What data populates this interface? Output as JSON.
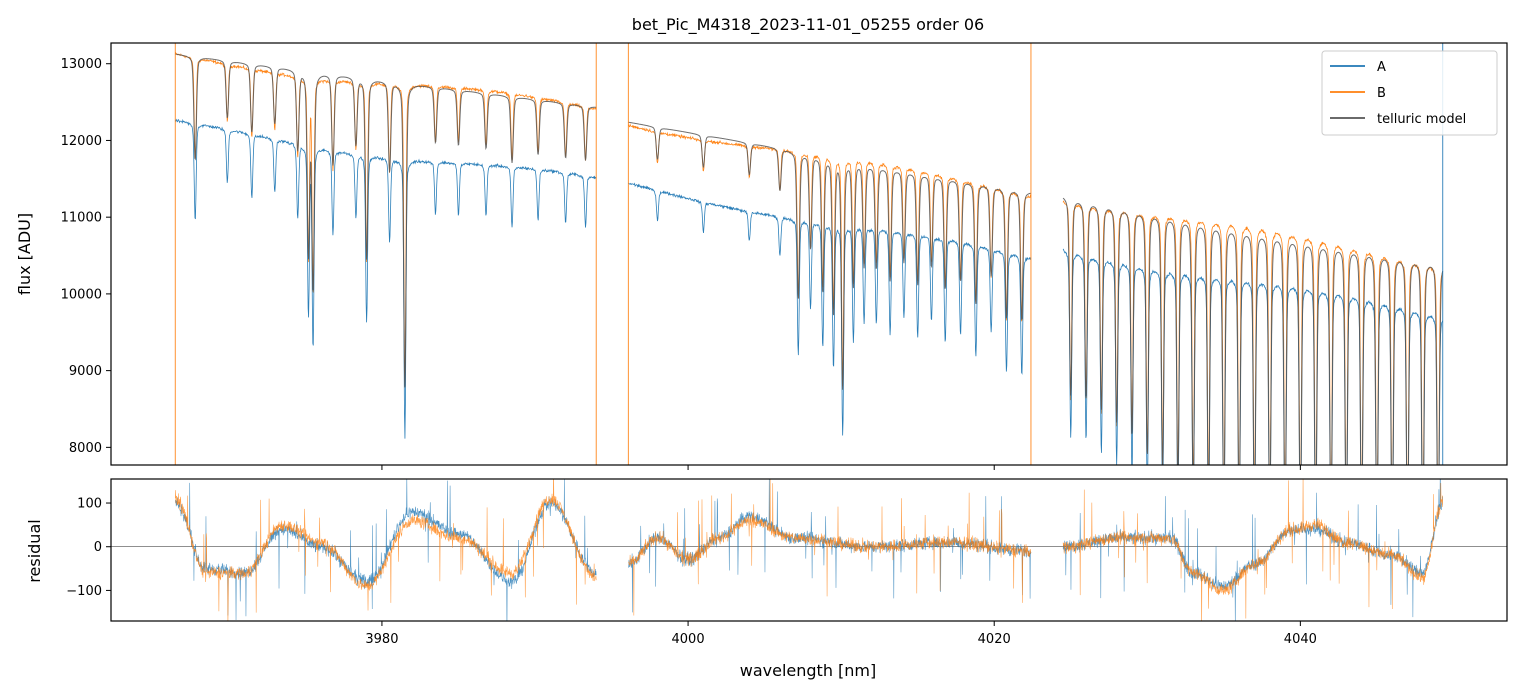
{
  "chart_data": [
    {
      "type": "line",
      "panel": "top",
      "title": "bet_Pic_M4318_2023-11-01_05255  order 06",
      "ylabel": "flux [ADU]",
      "xlim": [
        3962.3,
        4053.5
      ],
      "ylim": [
        7770,
        13270
      ],
      "yticks": [
        8000,
        9000,
        10000,
        11000,
        12000,
        13000
      ],
      "yticklabels": [
        "8000",
        "9000",
        "10000",
        "11000",
        "12000",
        "13000"
      ],
      "xticks": [
        3980,
        4000,
        4020,
        4040
      ],
      "grid": false,
      "legend_position": "top-right",
      "segments": [
        {
          "x": [
            3966.5,
            3994.0
          ],
          "A": [
            12200,
            11470
          ],
          "B": [
            13100,
            12420
          ],
          "model": [
            13130,
            12440
          ]
        },
        {
          "x": [
            3996.1,
            4022.4
          ],
          "A": [
            11420,
            10470
          ],
          "B": [
            12230,
            11330
          ],
          "model": [
            12240,
            11340
          ]
        },
        {
          "x": [
            4024.5,
            4049.3
          ],
          "A": [
            10620,
            9750
          ],
          "B": [
            11290,
            10430
          ],
          "model": [
            11300,
            10440
          ]
        }
      ],
      "absorption_lines": [
        {
          "x": 3967.8,
          "depth": 0.09
        },
        {
          "x": 3969.9,
          "depth": 0.05
        },
        {
          "x": 3971.5,
          "depth": 0.06
        },
        {
          "x": 3973.0,
          "depth": 0.05
        },
        {
          "x": 3974.5,
          "depth": 0.07
        },
        {
          "x": 3975.2,
          "depth": 0.16
        },
        {
          "x": 3975.5,
          "depth": 0.19
        },
        {
          "x": 3976.8,
          "depth": 0.08
        },
        {
          "x": 3978.3,
          "depth": 0.06
        },
        {
          "x": 3979.0,
          "depth": 0.16
        },
        {
          "x": 3980.5,
          "depth": 0.08
        },
        {
          "x": 3981.5,
          "depth": 0.27
        },
        {
          "x": 3983.5,
          "depth": 0.05
        },
        {
          "x": 3985.0,
          "depth": 0.05
        },
        {
          "x": 3986.8,
          "depth": 0.05
        },
        {
          "x": 3988.5,
          "depth": 0.06
        },
        {
          "x": 3990.2,
          "depth": 0.05
        },
        {
          "x": 3992.0,
          "depth": 0.05
        },
        {
          "x": 3993.3,
          "depth": 0.05
        },
        {
          "x": 3998.0,
          "depth": 0.03
        },
        {
          "x": 4001.0,
          "depth": 0.03
        },
        {
          "x": 4004.0,
          "depth": 0.03
        },
        {
          "x": 4006.0,
          "depth": 0.04
        },
        {
          "x": 4007.2,
          "depth": 0.14
        },
        {
          "x": 4008.0,
          "depth": 0.09
        },
        {
          "x": 4008.8,
          "depth": 0.13
        },
        {
          "x": 4009.5,
          "depth": 0.15
        },
        {
          "x": 4010.1,
          "depth": 0.22
        },
        {
          "x": 4010.8,
          "depth": 0.12
        },
        {
          "x": 4011.5,
          "depth": 0.1
        },
        {
          "x": 4012.3,
          "depth": 0.1
        },
        {
          "x": 4013.2,
          "depth": 0.11
        },
        {
          "x": 4014.1,
          "depth": 0.09
        },
        {
          "x": 4015.0,
          "depth": 0.11
        },
        {
          "x": 4015.9,
          "depth": 0.09
        },
        {
          "x": 4016.8,
          "depth": 0.11
        },
        {
          "x": 4017.8,
          "depth": 0.1
        },
        {
          "x": 4018.8,
          "depth": 0.12
        },
        {
          "x": 4019.8,
          "depth": 0.09
        },
        {
          "x": 4020.8,
          "depth": 0.13
        },
        {
          "x": 4021.8,
          "depth": 0.13
        },
        {
          "x": 4025.0,
          "depth": 0.2
        },
        {
          "x": 4026.0,
          "depth": 0.2
        },
        {
          "x": 4027.0,
          "depth": 0.21
        },
        {
          "x": 4028.0,
          "depth": 0.22
        },
        {
          "x": 4029.0,
          "depth": 0.23
        },
        {
          "x": 4030.0,
          "depth": 0.25
        },
        {
          "x": 4031.0,
          "depth": 0.26
        },
        {
          "x": 4032.0,
          "depth": 0.27
        },
        {
          "x": 4033.0,
          "depth": 0.28
        },
        {
          "x": 4034.0,
          "depth": 0.29
        },
        {
          "x": 4035.0,
          "depth": 0.3
        },
        {
          "x": 4036.0,
          "depth": 0.3
        },
        {
          "x": 4037.0,
          "depth": 0.3
        },
        {
          "x": 4038.0,
          "depth": 0.3
        },
        {
          "x": 4039.0,
          "depth": 0.3
        },
        {
          "x": 4040.0,
          "depth": 0.3
        },
        {
          "x": 4041.0,
          "depth": 0.3
        },
        {
          "x": 4042.0,
          "depth": 0.3
        },
        {
          "x": 4043.0,
          "depth": 0.3
        },
        {
          "x": 4044.0,
          "depth": 0.3
        },
        {
          "x": 4045.0,
          "depth": 0.3
        },
        {
          "x": 4046.0,
          "depth": 0.3
        },
        {
          "x": 4047.0,
          "depth": 0.3
        },
        {
          "x": 4048.0,
          "depth": 0.3
        },
        {
          "x": 4049.0,
          "depth": 0.3
        }
      ],
      "spikes": [
        {
          "series": "B",
          "x": 3966.5
        },
        {
          "series": "B",
          "x": 3994.0
        },
        {
          "series": "B",
          "x": 3996.1
        },
        {
          "series": "B",
          "x": 4022.4
        },
        {
          "series": "A",
          "x": 4049.3
        }
      ],
      "series": [
        {
          "name": "A",
          "color": "#1f77b4"
        },
        {
          "name": "B",
          "color": "#ff7f0e"
        },
        {
          "name": "telluric model",
          "color": "#555555"
        }
      ]
    },
    {
      "type": "line",
      "panel": "bottom",
      "xlabel": "wavelength [nm]",
      "ylabel": "residual",
      "xlim": [
        3962.3,
        4053.5
      ],
      "ylim": [
        -170,
        155
      ],
      "yticks": [
        -100,
        0,
        100
      ],
      "yticklabels": [
        "−100",
        "0",
        "100"
      ],
      "xticks": [
        3980,
        4000,
        4020,
        4040
      ],
      "xticklabels": [
        "3980",
        "4000",
        "4020",
        "4040"
      ],
      "zero_line": 0,
      "segments": [
        {
          "x": [
            3966.5,
            3994.0
          ]
        },
        {
          "x": [
            3996.1,
            4022.4
          ]
        },
        {
          "x": [
            4024.5,
            4049.3
          ]
        }
      ],
      "residual_trend": {
        "A": {
          "x": [
            3966.5,
            3968.5,
            3971.0,
            3973.5,
            3976.0,
            3979.0,
            3982.0,
            3985.0,
            3988.5,
            3991.0,
            3994.0,
            3996.1,
            3998.0,
            4000.0,
            4002.0,
            4004.0,
            4007.0,
            4012.0,
            4017.0,
            4022.4,
            4024.5,
            4028.0,
            4031.5,
            4033.0,
            4035.0,
            4037.0,
            4039.5,
            4041.0,
            4043.0,
            4046.0,
            4048.0,
            4049.3
          ],
          "y": [
            100,
            -50,
            -60,
            40,
            0,
            -80,
            80,
            30,
            -80,
            100,
            -60,
            -40,
            20,
            -30,
            20,
            70,
            20,
            0,
            10,
            -10,
            0,
            20,
            20,
            -60,
            -90,
            -40,
            40,
            40,
            10,
            -20,
            -60,
            100
          ]
        },
        "B": {
          "x": [
            3966.5,
            3968.5,
            3971.0,
            3973.5,
            3976.0,
            3979.0,
            3982.0,
            3985.0,
            3988.5,
            3991.0,
            3994.0,
            3996.1,
            3998.0,
            4000.0,
            4002.0,
            4004.0,
            4007.0,
            4012.0,
            4017.0,
            4022.4,
            4024.5,
            4028.0,
            4031.5,
            4033.0,
            4035.0,
            4037.0,
            4039.5,
            4041.0,
            4043.0,
            4046.0,
            4048.0,
            4049.3
          ],
          "y": [
            110,
            -60,
            -60,
            50,
            10,
            -90,
            60,
            20,
            -60,
            110,
            -70,
            -40,
            20,
            -30,
            20,
            60,
            20,
            0,
            10,
            -10,
            0,
            20,
            20,
            -60,
            -100,
            -40,
            40,
            50,
            10,
            -20,
            -70,
            100
          ]
        }
      },
      "series": [
        {
          "name": "A",
          "color": "#1f77b4"
        },
        {
          "name": "B",
          "color": "#ff7f0e"
        }
      ]
    }
  ]
}
